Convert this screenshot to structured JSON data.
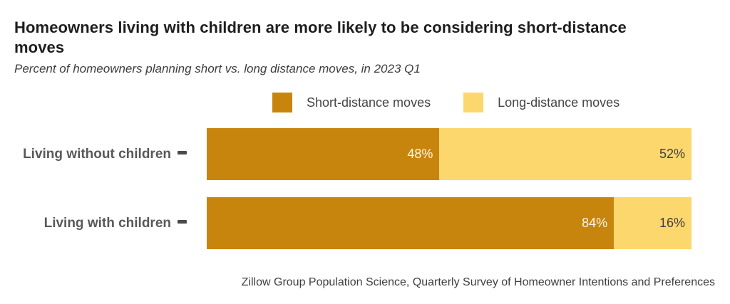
{
  "header": {
    "title": "Homeowners living with children are more likely to be considering short-distance moves",
    "subtitle": "Percent of homeowners planning short vs. long distance moves, in 2023 Q1"
  },
  "legend": {
    "items": [
      {
        "label": "Short-distance moves",
        "color": "#C8850D"
      },
      {
        "label": "Long-distance moves",
        "color": "#FCD76E"
      }
    ]
  },
  "chart_data": {
    "type": "bar",
    "orientation": "horizontal",
    "stacked": true,
    "unit": "percent",
    "title": "Homeowners living with children are more likely to be considering short-distance moves",
    "subtitle": "Percent of homeowners planning short vs. long distance moves, in 2023 Q1",
    "categories": [
      "Living without children",
      "Living with children"
    ],
    "series": [
      {
        "name": "Short-distance moves",
        "color": "#C8850D",
        "values": [
          48,
          84
        ]
      },
      {
        "name": "Long-distance moves",
        "color": "#FCD76E",
        "values": [
          52,
          16
        ]
      }
    ],
    "value_labels": {
      "short": [
        "48%",
        "84%"
      ],
      "long": [
        "52%",
        "16%"
      ]
    },
    "xlim": [
      0,
      100
    ],
    "grid": false,
    "legend_position": "top"
  },
  "source": "Zillow Group Population Science, Quarterly Survey of Homeowner Intentions and Preferences",
  "colors": {
    "short_segment": "#C8850D",
    "long_segment": "#FCD76E",
    "title_text": "#1E1E1E",
    "category_label": "#58595B"
  }
}
